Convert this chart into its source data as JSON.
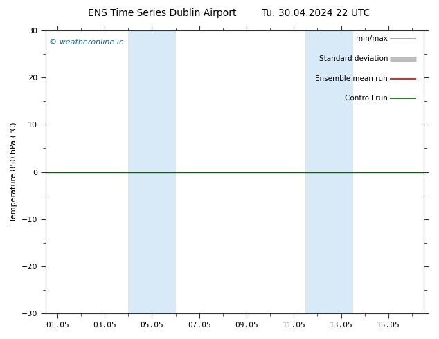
{
  "title_left": "ENS Time Series Dublin Airport",
  "title_right": "Tu. 30.04.2024 22 UTC",
  "ylabel": "Temperature 850 hPa (°C)",
  "watermark": "© weatheronline.in",
  "ylim": [
    -30,
    30
  ],
  "yticks": [
    -30,
    -20,
    -10,
    0,
    10,
    20,
    30
  ],
  "xtick_labels": [
    "01.05",
    "03.05",
    "05.05",
    "07.05",
    "09.05",
    "11.05",
    "13.05",
    "15.05"
  ],
  "xtick_positions": [
    0,
    2,
    4,
    6,
    8,
    10,
    12,
    14
  ],
  "xlim": [
    -0.5,
    15.5
  ],
  "shaded_bands": [
    {
      "start": 3.0,
      "end": 5.0
    },
    {
      "start": 10.5,
      "end": 12.5
    }
  ],
  "shaded_color": "#d8eaf7",
  "zero_line_color": "#006400",
  "legend_items": [
    {
      "label": "min/max",
      "color": "#999999",
      "lw": 1.2,
      "style": "solid"
    },
    {
      "label": "Standard deviation",
      "color": "#bbbbbb",
      "lw": 5,
      "style": "solid"
    },
    {
      "label": "Ensemble mean run",
      "color": "#dd0000",
      "lw": 1.2,
      "style": "solid"
    },
    {
      "label": "Controll run",
      "color": "#006400",
      "lw": 1.2,
      "style": "solid"
    }
  ],
  "bg_color": "#ffffff",
  "title_fontsize": 10,
  "axis_label_fontsize": 8,
  "tick_label_fontsize": 8,
  "watermark_fontsize": 8,
  "watermark_color": "#1a6696",
  "legend_fontsize": 7.5,
  "spine_color": "#333333"
}
